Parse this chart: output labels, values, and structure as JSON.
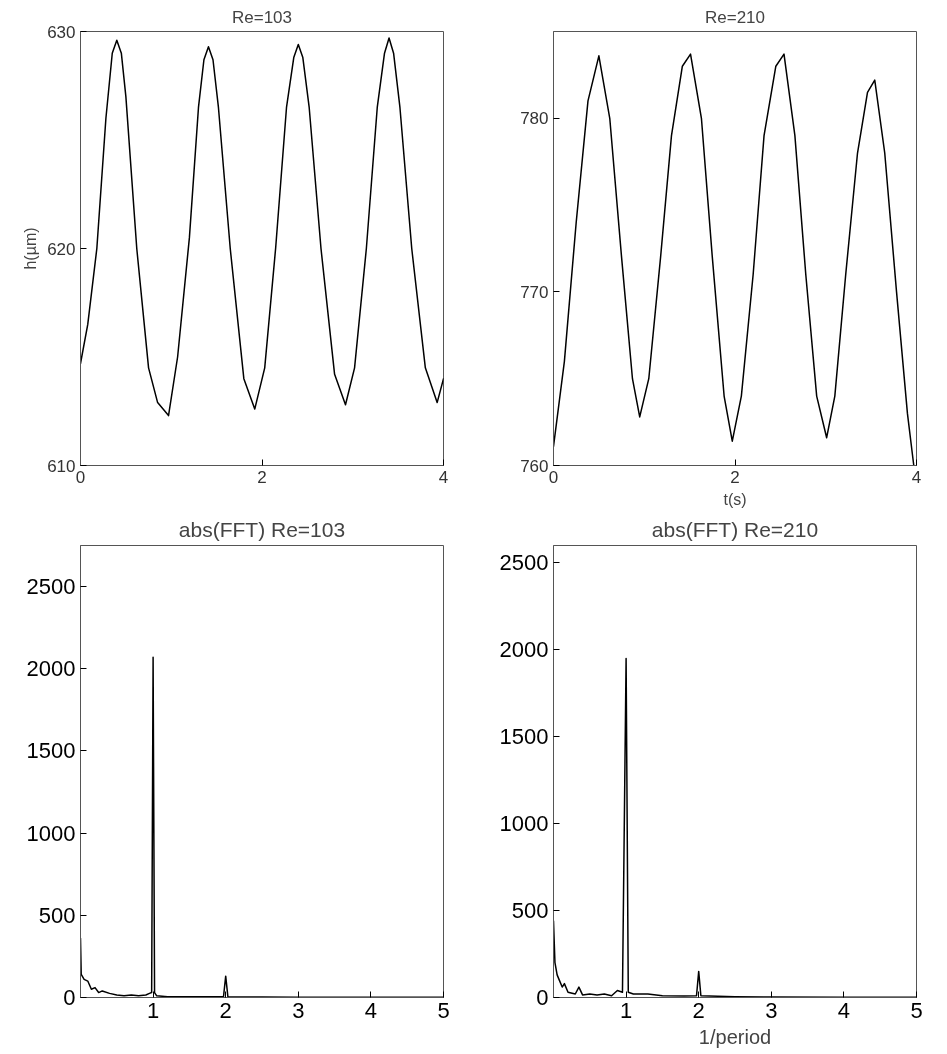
{
  "chart_data": [
    {
      "type": "line",
      "title": "Re=103",
      "ylabel": "h(µm)",
      "xlim": [
        0,
        4
      ],
      "ylim": [
        610,
        630
      ],
      "xticks": [
        0,
        2,
        4
      ],
      "yticks": [
        610,
        620,
        630
      ],
      "grid": false,
      "series": [
        {
          "color": "#000000",
          "x": [
            0,
            0.08,
            0.18,
            0.28,
            0.35,
            0.4,
            0.45,
            0.5,
            0.62,
            0.75,
            0.85,
            0.97,
            1.07,
            1.2,
            1.3,
            1.36,
            1.41,
            1.46,
            1.52,
            1.65,
            1.8,
            1.92,
            2.03,
            2.15,
            2.27,
            2.35,
            2.4,
            2.45,
            2.52,
            2.65,
            2.8,
            2.92,
            3.02,
            3.15,
            3.27,
            3.35,
            3.4,
            3.45,
            3.52,
            3.65,
            3.8,
            3.93,
            4.0
          ],
          "values": [
            614.7,
            616.5,
            620,
            626,
            629,
            629.6,
            629,
            627,
            620,
            614.5,
            612.9,
            612.3,
            615,
            620.5,
            626.5,
            628.7,
            629.3,
            628.7,
            626.5,
            620,
            614,
            612.6,
            614.5,
            620,
            626.5,
            628.8,
            629.4,
            628.8,
            626.5,
            620,
            614.2,
            612.8,
            614.5,
            620,
            626.5,
            629,
            629.7,
            629,
            626.5,
            620,
            614.5,
            612.9,
            614.0
          ]
        }
      ]
    },
    {
      "type": "line",
      "title": "Re=210",
      "xlabel": "t(s)",
      "xlim": [
        0,
        4
      ],
      "ylim": [
        760,
        785
      ],
      "xticks": [
        0,
        2,
        4
      ],
      "yticks": [
        760,
        770,
        780
      ],
      "grid": false,
      "series": [
        {
          "color": "#000000",
          "x": [
            0,
            0.12,
            0.25,
            0.38,
            0.5,
            0.62,
            0.75,
            0.87,
            0.95,
            1.05,
            1.18,
            1.3,
            1.42,
            1.51,
            1.63,
            1.75,
            1.88,
            1.97,
            2.07,
            2.2,
            2.32,
            2.45,
            2.54,
            2.66,
            2.78,
            2.9,
            3.01,
            3.1,
            3.22,
            3.35,
            3.46,
            3.54,
            3.65,
            3.78,
            3.9,
            3.97
          ],
          "values": [
            761.1,
            766,
            774,
            781,
            783.6,
            780,
            772,
            765,
            762.8,
            765,
            772,
            779,
            783,
            783.7,
            780,
            772,
            764,
            761.4,
            764,
            771,
            779,
            783,
            783.7,
            779,
            771,
            764,
            761.6,
            764,
            771,
            778,
            781.5,
            782.2,
            778,
            770,
            763,
            760
          ]
        }
      ]
    },
    {
      "type": "line",
      "title": "abs(FFT) Re=103",
      "xlim": [
        0,
        5
      ],
      "ylim": [
        0,
        2750
      ],
      "xticks": [
        1,
        2,
        3,
        4,
        5
      ],
      "yticks": [
        0,
        500,
        1000,
        1500,
        2000,
        2500
      ],
      "grid": false,
      "series": [
        {
          "color": "#000000",
          "x": [
            0,
            0.01,
            0.05,
            0.1,
            0.15,
            0.2,
            0.25,
            0.3,
            0.4,
            0.5,
            0.6,
            0.7,
            0.8,
            0.9,
            0.95,
            0.98,
            1.0,
            1.02,
            1.05,
            1.2,
            1.5,
            1.97,
            2.0,
            2.03,
            2.5,
            3,
            4,
            5
          ],
          "values": [
            360,
            140,
            110,
            100,
            50,
            60,
            30,
            40,
            25,
            15,
            10,
            15,
            10,
            15,
            25,
            30,
            2070,
            30,
            10,
            5,
            5,
            5,
            130,
            5,
            3,
            2,
            2,
            2
          ]
        }
      ]
    },
    {
      "type": "line",
      "title": "abs(FFT) Re=210",
      "xlabel": "1/period",
      "xlim": [
        0,
        5
      ],
      "ylim": [
        0,
        2600
      ],
      "xticks": [
        1,
        2,
        3,
        4,
        5
      ],
      "yticks": [
        0,
        500,
        1000,
        1500,
        2000,
        2500
      ],
      "grid": false,
      "series": [
        {
          "color": "#000000",
          "x": [
            0,
            0.02,
            0.05,
            0.08,
            0.12,
            0.15,
            0.2,
            0.3,
            0.35,
            0.4,
            0.5,
            0.6,
            0.7,
            0.8,
            0.88,
            0.95,
            1.0,
            1.03,
            1.1,
            1.3,
            1.5,
            1.8,
            1.97,
            2.0,
            2.03,
            2.5,
            3,
            4,
            5
          ],
          "values": [
            440,
            200,
            130,
            100,
            60,
            80,
            30,
            20,
            60,
            15,
            20,
            15,
            20,
            10,
            40,
            30,
            1950,
            30,
            20,
            20,
            10,
            8,
            10,
            150,
            10,
            5,
            3,
            2,
            2
          ]
        }
      ]
    }
  ]
}
